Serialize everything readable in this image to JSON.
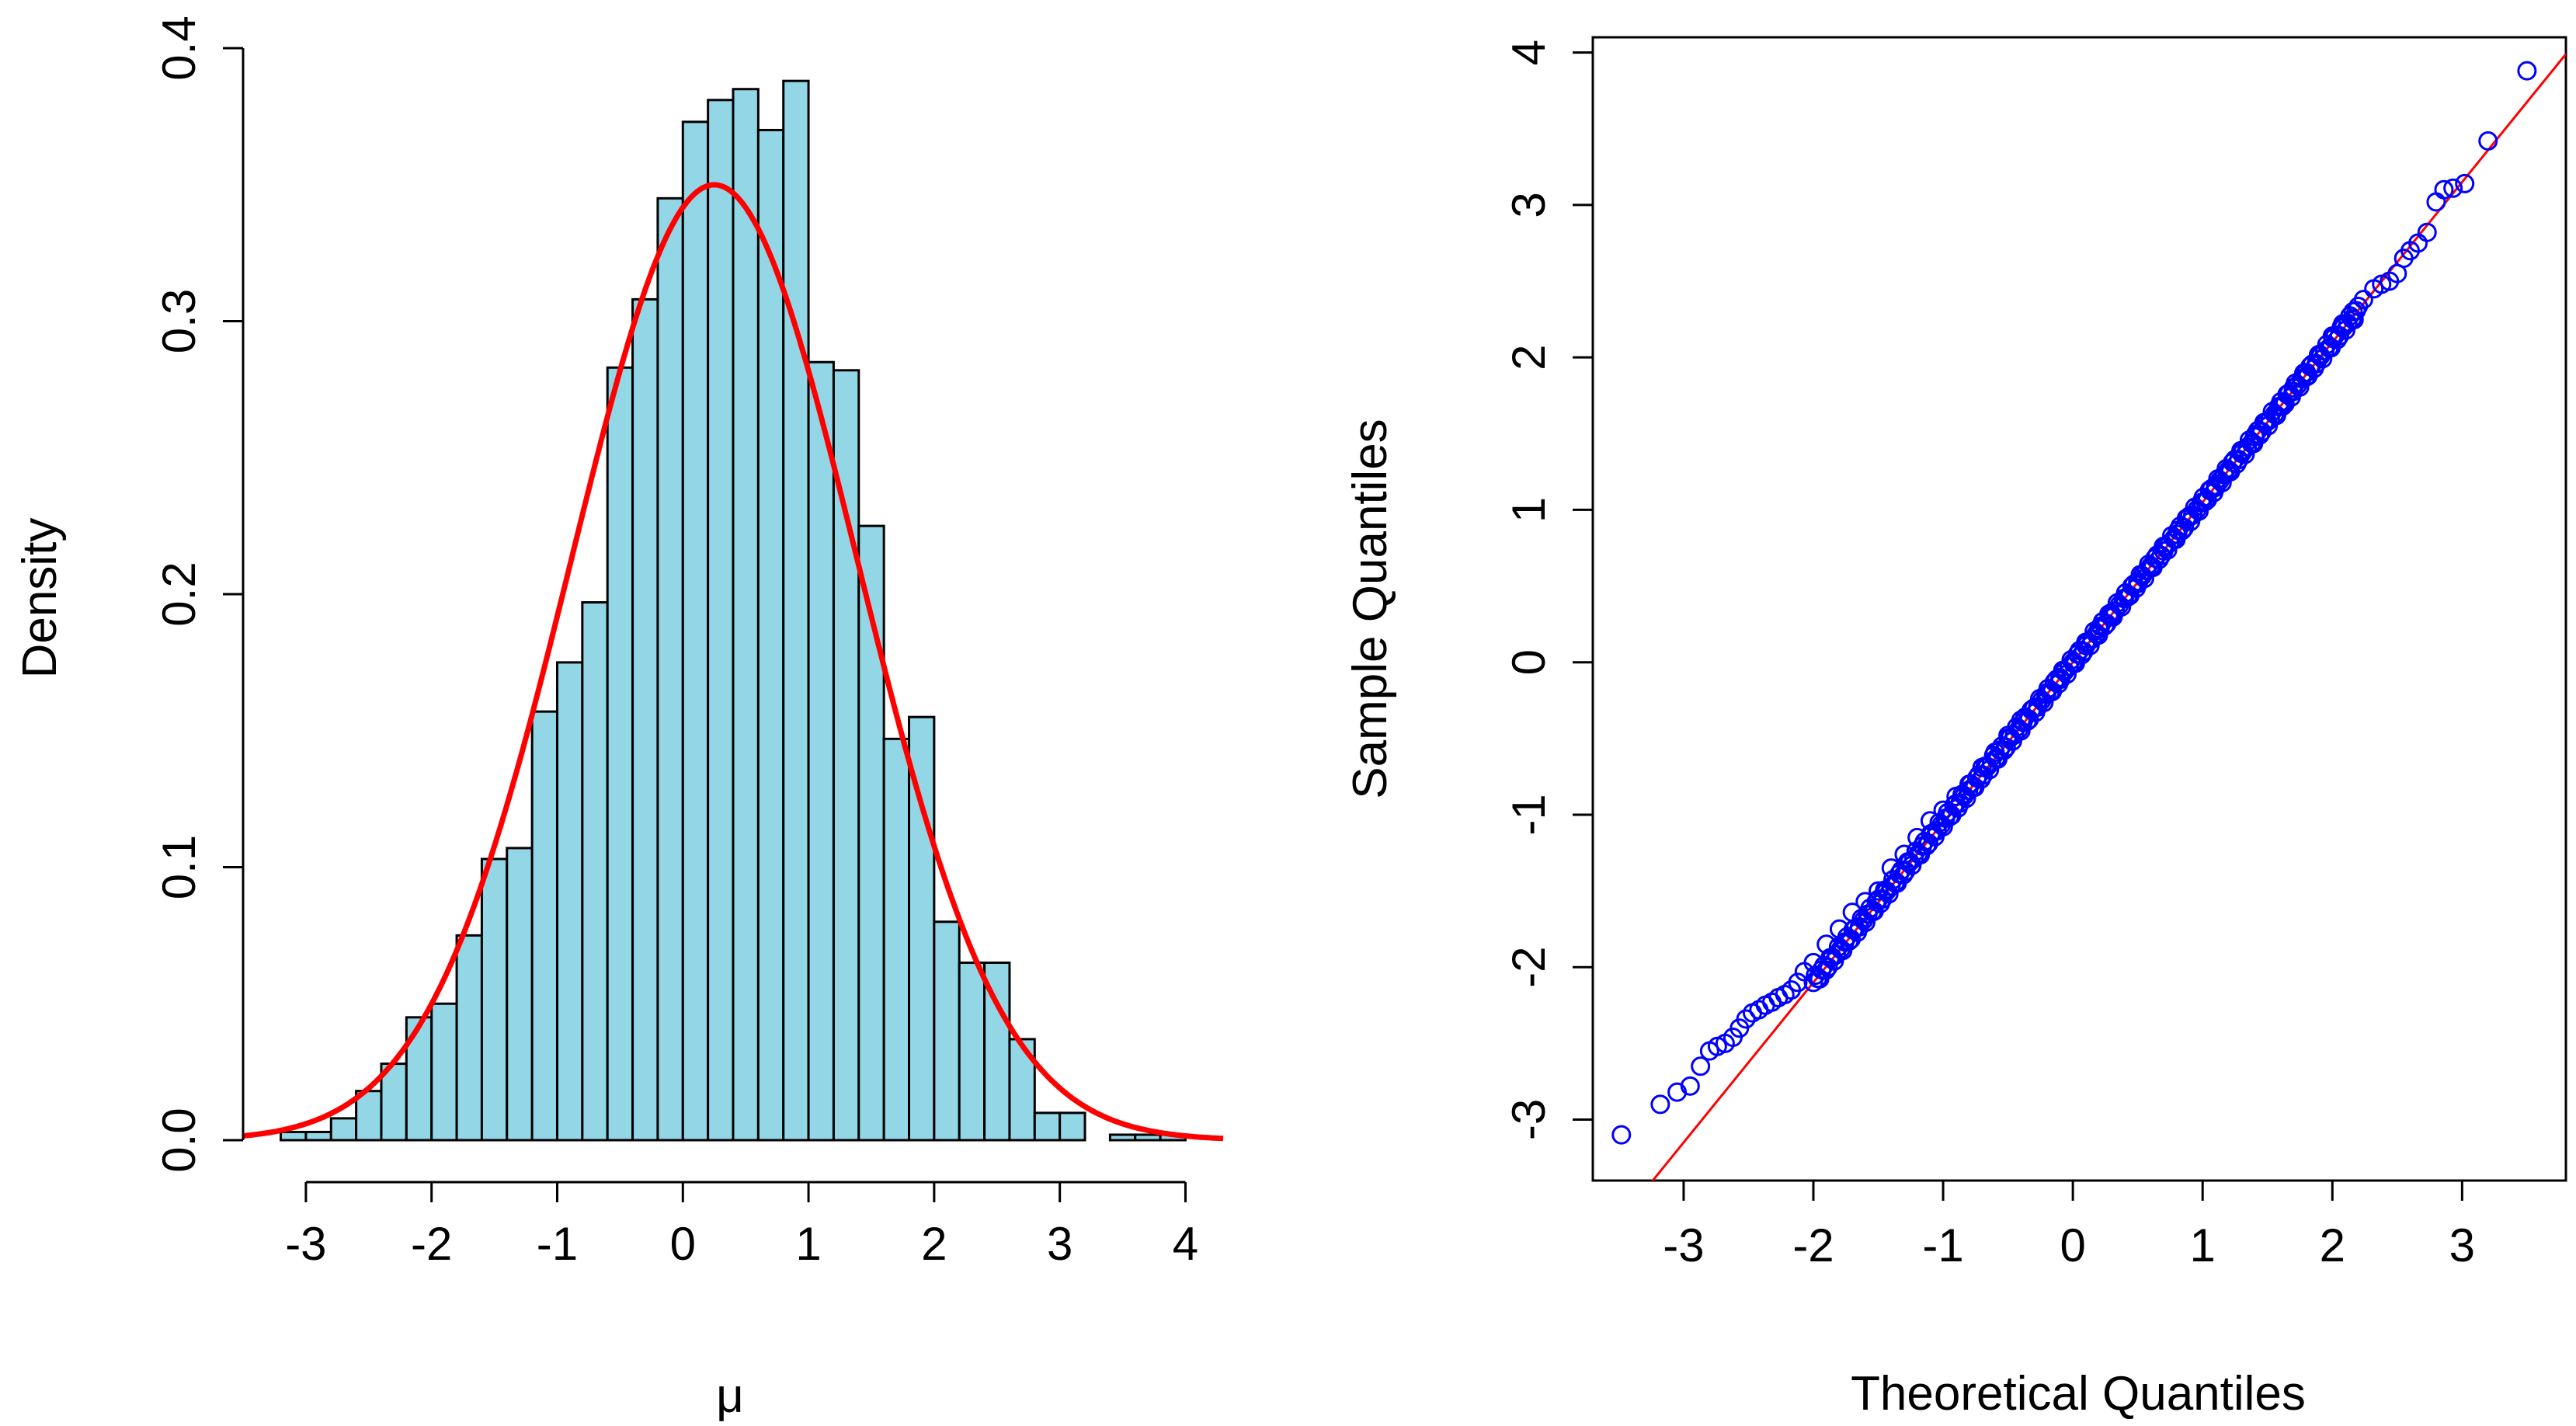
{
  "chart_data": [
    {
      "type": "bar",
      "subtype": "histogram-with-density-curve",
      "title": "",
      "xlabel": "μ",
      "ylabel": "Density",
      "xlim": [
        -3.5,
        4.3
      ],
      "ylim": [
        0,
        0.4
      ],
      "xticks": [
        "-3",
        "-2",
        "-1",
        "0",
        "1",
        "2",
        "3",
        "4"
      ],
      "yticks": [
        "0.0",
        "0.1",
        "0.2",
        "0.3",
        "0.4"
      ],
      "bin_width": 0.2,
      "bins": [
        {
          "x0": -3.2,
          "density": 0.003
        },
        {
          "x0": -3.0,
          "density": 0.003
        },
        {
          "x0": -2.8,
          "density": 0.008
        },
        {
          "x0": -2.6,
          "density": 0.018
        },
        {
          "x0": -2.4,
          "density": 0.028
        },
        {
          "x0": -2.2,
          "density": 0.045
        },
        {
          "x0": -2.0,
          "density": 0.05
        },
        {
          "x0": -1.8,
          "density": 0.075
        },
        {
          "x0": -1.6,
          "density": 0.103
        },
        {
          "x0": -1.4,
          "density": 0.107
        },
        {
          "x0": -1.2,
          "density": 0.157
        },
        {
          "x0": -1.0,
          "density": 0.175
        },
        {
          "x0": -0.8,
          "density": 0.197
        },
        {
          "x0": -0.6,
          "density": 0.283
        },
        {
          "x0": -0.4,
          "density": 0.308
        },
        {
          "x0": -0.2,
          "density": 0.345
        },
        {
          "x0": 0.0,
          "density": 0.373
        },
        {
          "x0": 0.2,
          "density": 0.381
        },
        {
          "x0": 0.4,
          "density": 0.385
        },
        {
          "x0": 0.6,
          "density": 0.37
        },
        {
          "x0": 0.8,
          "density": 0.388
        },
        {
          "x0": 1.0,
          "density": 0.285
        },
        {
          "x0": 1.2,
          "density": 0.282
        },
        {
          "x0": 1.4,
          "density": 0.225
        },
        {
          "x0": 1.6,
          "density": 0.147
        },
        {
          "x0": 1.8,
          "density": 0.155
        },
        {
          "x0": 2.0,
          "density": 0.08
        },
        {
          "x0": 2.2,
          "density": 0.065
        },
        {
          "x0": 2.4,
          "density": 0.065
        },
        {
          "x0": 2.6,
          "density": 0.037
        },
        {
          "x0": 2.8,
          "density": 0.01
        },
        {
          "x0": 3.0,
          "density": 0.01
        },
        {
          "x0": 3.2,
          "density": 0.0
        },
        {
          "x0": 3.4,
          "density": 0.002
        },
        {
          "x0": 3.6,
          "density": 0.002
        },
        {
          "x0": 3.8,
          "density": 0.002
        }
      ],
      "density_curve": {
        "distribution": "normal",
        "mean": 0.25,
        "sd": 1.14,
        "color": "#ff0000"
      },
      "bar_fill": "#93d7e6",
      "bar_edge": "#000000"
    },
    {
      "type": "scatter",
      "subtype": "normal-qq-plot",
      "title": "",
      "xlabel": "Theoretical Quantiles",
      "ylabel": "Sample Quantiles",
      "xlim": [
        -3.7,
        3.8
      ],
      "ylim": [
        -3.4,
        4.1
      ],
      "xticks": [
        "-3",
        "-2",
        "-1",
        "0",
        "1",
        "2",
        "3"
      ],
      "yticks": [
        "-3",
        "-2",
        "-1",
        "0",
        "1",
        "2",
        "3",
        "4"
      ],
      "reference_line": {
        "intercept": 0.0,
        "slope": 1.05,
        "color": "#ff0000"
      },
      "point_color": "#0000ff",
      "points": [
        {
          "x": -3.48,
          "y": -3.1
        },
        {
          "x": -3.18,
          "y": -2.9
        },
        {
          "x": -3.05,
          "y": -2.82
        },
        {
          "x": -2.95,
          "y": -2.78
        },
        {
          "x": -2.87,
          "y": -2.65
        },
        {
          "x": -2.8,
          "y": -2.55
        },
        {
          "x": -2.74,
          "y": -2.52
        },
        {
          "x": -2.68,
          "y": -2.5
        },
        {
          "x": -2.62,
          "y": -2.46
        },
        {
          "x": -2.57,
          "y": -2.4
        },
        {
          "x": -2.52,
          "y": -2.34
        },
        {
          "x": -2.47,
          "y": -2.3
        },
        {
          "x": -2.42,
          "y": -2.28
        },
        {
          "x": -2.37,
          "y": -2.25
        },
        {
          "x": -2.32,
          "y": -2.23
        },
        {
          "x": -2.27,
          "y": -2.2
        },
        {
          "x": -2.22,
          "y": -2.18
        },
        {
          "x": -2.17,
          "y": -2.15
        },
        {
          "x": -2.12,
          "y": -2.1
        },
        {
          "x": -2.07,
          "y": -2.03
        },
        {
          "x": -2.0,
          "y": -1.97
        },
        {
          "x": -1.9,
          "y": -1.85
        },
        {
          "x": -1.8,
          "y": -1.75
        },
        {
          "x": -1.7,
          "y": -1.64
        },
        {
          "x": -1.6,
          "y": -1.57
        },
        {
          "x": -1.5,
          "y": -1.5
        },
        {
          "x": -1.4,
          "y": -1.35
        },
        {
          "x": -1.3,
          "y": -1.26
        },
        {
          "x": -1.2,
          "y": -1.15
        },
        {
          "x": -1.1,
          "y": -1.04
        },
        {
          "x": -1.0,
          "y": -0.97
        },
        {
          "x": -0.9,
          "y": -0.88
        },
        {
          "x": -0.8,
          "y": -0.8
        },
        {
          "x": -0.7,
          "y": -0.69
        },
        {
          "x": -0.6,
          "y": -0.59
        },
        {
          "x": -0.5,
          "y": -0.48
        },
        {
          "x": -0.4,
          "y": -0.38
        },
        {
          "x": -0.3,
          "y": -0.3
        },
        {
          "x": -0.2,
          "y": -0.2
        },
        {
          "x": -0.1,
          "y": -0.1
        },
        {
          "x": 0.0,
          "y": 0.0
        },
        {
          "x": 0.1,
          "y": 0.11
        },
        {
          "x": 0.2,
          "y": 0.22
        },
        {
          "x": 0.3,
          "y": 0.31
        },
        {
          "x": 0.4,
          "y": 0.42
        },
        {
          "x": 0.5,
          "y": 0.53
        },
        {
          "x": 0.6,
          "y": 0.63
        },
        {
          "x": 0.7,
          "y": 0.73
        },
        {
          "x": 0.8,
          "y": 0.84
        },
        {
          "x": 0.9,
          "y": 0.96
        },
        {
          "x": 1.0,
          "y": 1.05
        },
        {
          "x": 1.1,
          "y": 1.16
        },
        {
          "x": 1.2,
          "y": 1.26
        },
        {
          "x": 1.3,
          "y": 1.37
        },
        {
          "x": 1.4,
          "y": 1.48
        },
        {
          "x": 1.5,
          "y": 1.58
        },
        {
          "x": 1.6,
          "y": 1.68
        },
        {
          "x": 1.7,
          "y": 1.8
        },
        {
          "x": 1.8,
          "y": 1.9
        },
        {
          "x": 1.9,
          "y": 2.02
        },
        {
          "x": 2.0,
          "y": 2.14
        },
        {
          "x": 2.08,
          "y": 2.22
        },
        {
          "x": 2.16,
          "y": 2.3
        },
        {
          "x": 2.24,
          "y": 2.38
        },
        {
          "x": 2.32,
          "y": 2.45
        },
        {
          "x": 2.38,
          "y": 2.48
        },
        {
          "x": 2.44,
          "y": 2.5
        },
        {
          "x": 2.5,
          "y": 2.55
        },
        {
          "x": 2.55,
          "y": 2.65
        },
        {
          "x": 2.6,
          "y": 2.7
        },
        {
          "x": 2.66,
          "y": 2.75
        },
        {
          "x": 2.73,
          "y": 2.82
        },
        {
          "x": 2.8,
          "y": 3.02
        },
        {
          "x": 2.86,
          "y": 3.1
        },
        {
          "x": 2.93,
          "y": 3.11
        },
        {
          "x": 3.02,
          "y": 3.14
        },
        {
          "x": 3.2,
          "y": 3.42
        },
        {
          "x": 3.5,
          "y": 3.88
        }
      ]
    }
  ]
}
